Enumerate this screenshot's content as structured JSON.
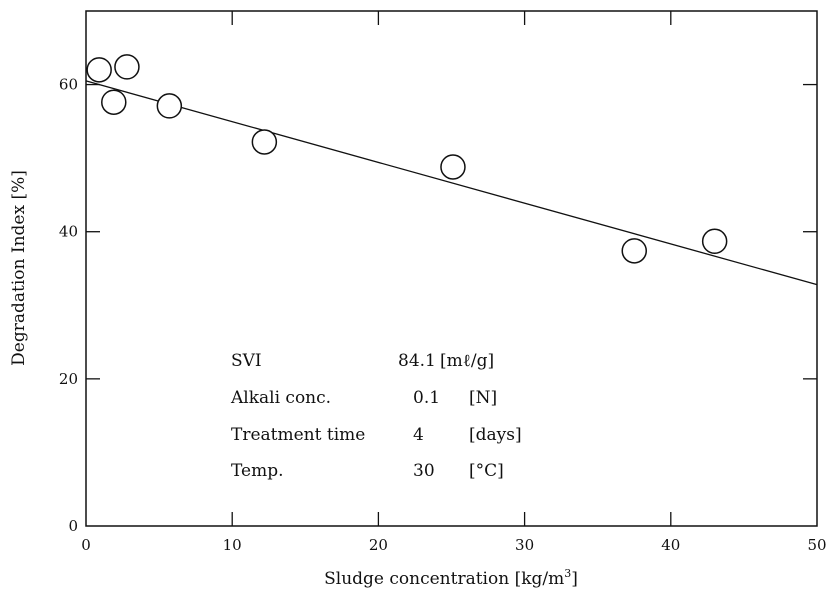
{
  "chart_data": {
    "type": "scatter",
    "title": "",
    "xlabel": "Sludge concentration [kg/m",
    "xlabel_sup": "3",
    "xlabel_end": "]",
    "ylabel": "Degradation Index [%]",
    "xlim": [
      0,
      50
    ],
    "ylim": [
      0,
      70
    ],
    "xticks": [
      0,
      10,
      20,
      30,
      40,
      50
    ],
    "xtick_labels": [
      "0",
      "10",
      "20",
      "30",
      "40",
      "50"
    ],
    "yticks": [
      0,
      20,
      40,
      60
    ],
    "ytick_labels": [
      "0",
      "20",
      "40",
      "60"
    ],
    "grid": false,
    "points": [
      {
        "x": 0.9,
        "y": 62.0
      },
      {
        "x": 1.9,
        "y": 57.6
      },
      {
        "x": 2.8,
        "y": 62.4
      },
      {
        "x": 5.7,
        "y": 57.1
      },
      {
        "x": 12.2,
        "y": 52.2
      },
      {
        "x": 25.1,
        "y": 48.8
      },
      {
        "x": 37.5,
        "y": 37.4
      },
      {
        "x": 43.0,
        "y": 38.7
      }
    ],
    "fit_line": {
      "x": [
        0,
        50
      ],
      "y": [
        60.5,
        32.8
      ]
    },
    "annotation": [
      {
        "name": "SVI",
        "value": "84.1",
        "unit": "[mℓ/g]"
      },
      {
        "name": "Alkali conc.",
        "value": "0.1",
        "unit": "[N]"
      },
      {
        "name": "Treatment time",
        "value": "4",
        "unit": "[days]"
      },
      {
        "name": "Temp.",
        "value": "30",
        "unit": "[°C]"
      }
    ]
  }
}
